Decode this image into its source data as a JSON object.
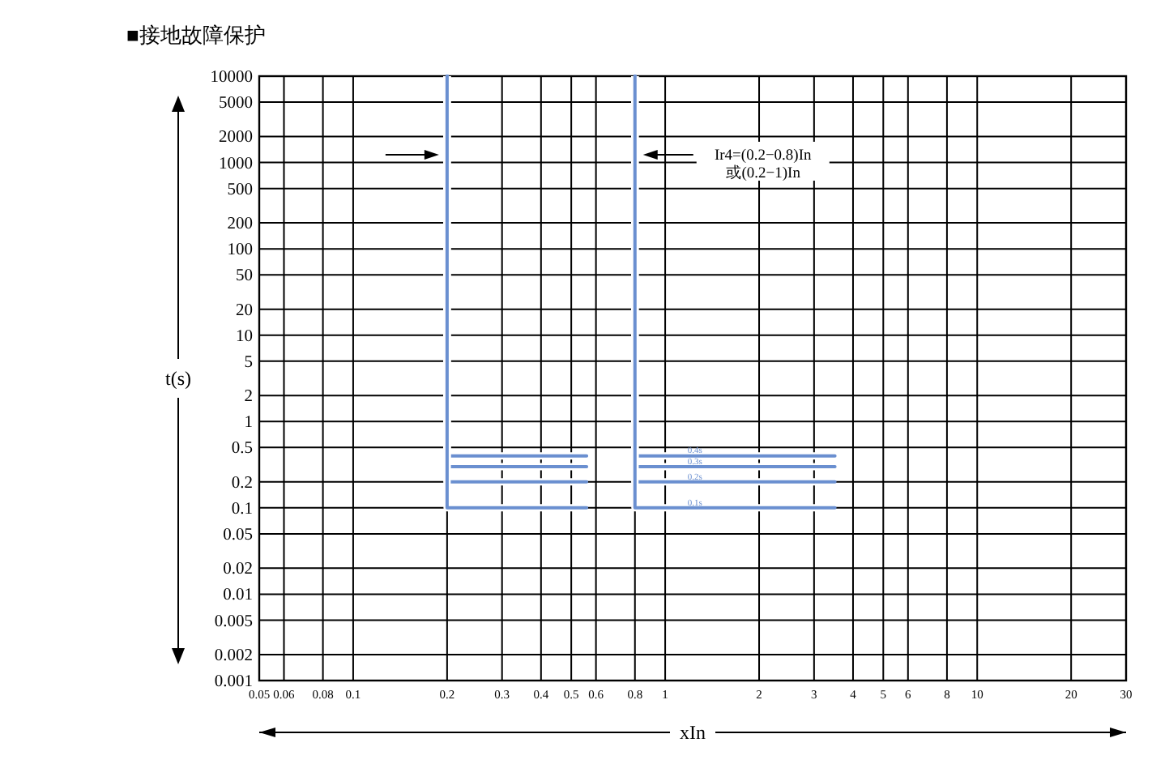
{
  "chart_data": {
    "type": "line",
    "title": "■接地故障保护",
    "xlabel": "xIn",
    "ylabel": "t(s)",
    "annotations": [
      "Ir4=(0.2−0.8)In\n或(0.2−1)In"
    ],
    "series": [
      {
        "color": "#6a8fd0",
        "x": [
          0.2,
          0.2,
          0.56
        ],
        "values": [
          10000,
          0.4,
          0.4
        ]
      },
      {
        "color": "#6a8fd0",
        "x": [
          0.2,
          0.2,
          0.56
        ],
        "values": [
          10000,
          0.3,
          0.3
        ]
      },
      {
        "color": "#6a8fd0",
        "x": [
          0.2,
          0.2,
          0.56
        ],
        "values": [
          10000,
          0.2,
          0.2
        ]
      },
      {
        "color": "#6a8fd0",
        "x": [
          0.2,
          0.2,
          0.56
        ],
        "values": [
          10000,
          0.1,
          0.1
        ]
      },
      {
        "name": "0.4s",
        "color": "#6a8fd0",
        "x": [
          0.8,
          0.8,
          3.5
        ],
        "values": [
          10000,
          0.4,
          0.4
        ]
      },
      {
        "name": "0.3s",
        "color": "#6a8fd0",
        "x": [
          0.8,
          0.8,
          3.5
        ],
        "values": [
          10000,
          0.3,
          0.3
        ]
      },
      {
        "name": "0.2s",
        "color": "#6a8fd0",
        "x": [
          0.8,
          0.8,
          3.5
        ],
        "values": [
          10000,
          0.2,
          0.2
        ]
      },
      {
        "name": "0.1s",
        "color": "#6a8fd0",
        "x": [
          0.8,
          0.8,
          3.5
        ],
        "values": [
          10000,
          0.1,
          0.1
        ]
      }
    ],
    "xlim": [
      0.05,
      30
    ],
    "ylim": [
      0.001,
      10000
    ],
    "xticks": [
      0.05,
      0.06,
      0.08,
      0.1,
      0.2,
      0.3,
      0.4,
      0.5,
      0.6,
      0.8,
      1,
      2,
      3,
      4,
      5,
      6,
      8,
      10,
      20,
      30
    ],
    "yticks": [
      0.001,
      0.002,
      0.005,
      0.01,
      0.02,
      0.05,
      0.1,
      0.2,
      0.5,
      1,
      2,
      5,
      10,
      20,
      50,
      100,
      200,
      500,
      1000,
      2000,
      5000,
      10000
    ],
    "log": "xy",
    "grid": true
  }
}
